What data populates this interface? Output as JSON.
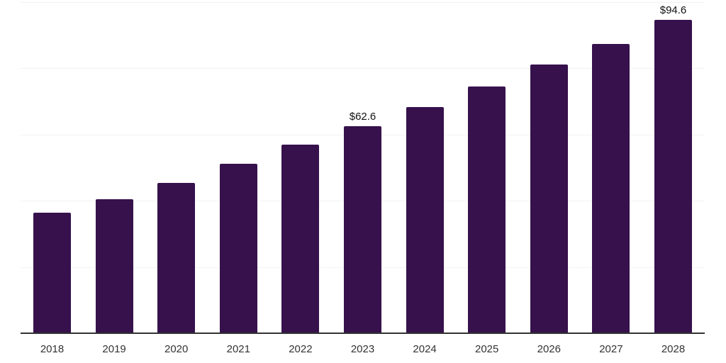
{
  "chart_data": {
    "type": "bar",
    "title": "",
    "xlabel": "",
    "ylabel": "",
    "categories": [
      "2018",
      "2019",
      "2020",
      "2021",
      "2022",
      "2023",
      "2024",
      "2025",
      "2026",
      "2027",
      "2028"
    ],
    "values": [
      36.5,
      40.4,
      45.3,
      51.1,
      57.0,
      62.6,
      68.4,
      74.6,
      81.1,
      87.4,
      94.6
    ],
    "data_labels": [
      {
        "category": "2023",
        "text": "$62.6"
      },
      {
        "category": "2028",
        "text": "$94.6"
      }
    ],
    "ylim": [
      0,
      100
    ],
    "gridline_values": [
      20,
      40,
      60,
      80,
      100
    ],
    "grid": true,
    "legend": false,
    "colors": {
      "bar": "#36114C",
      "axis_line": "#333333",
      "gridline": "#f4f2f4",
      "tick_label": "#333333",
      "data_label": "#111111",
      "background": "#ffffff"
    }
  }
}
